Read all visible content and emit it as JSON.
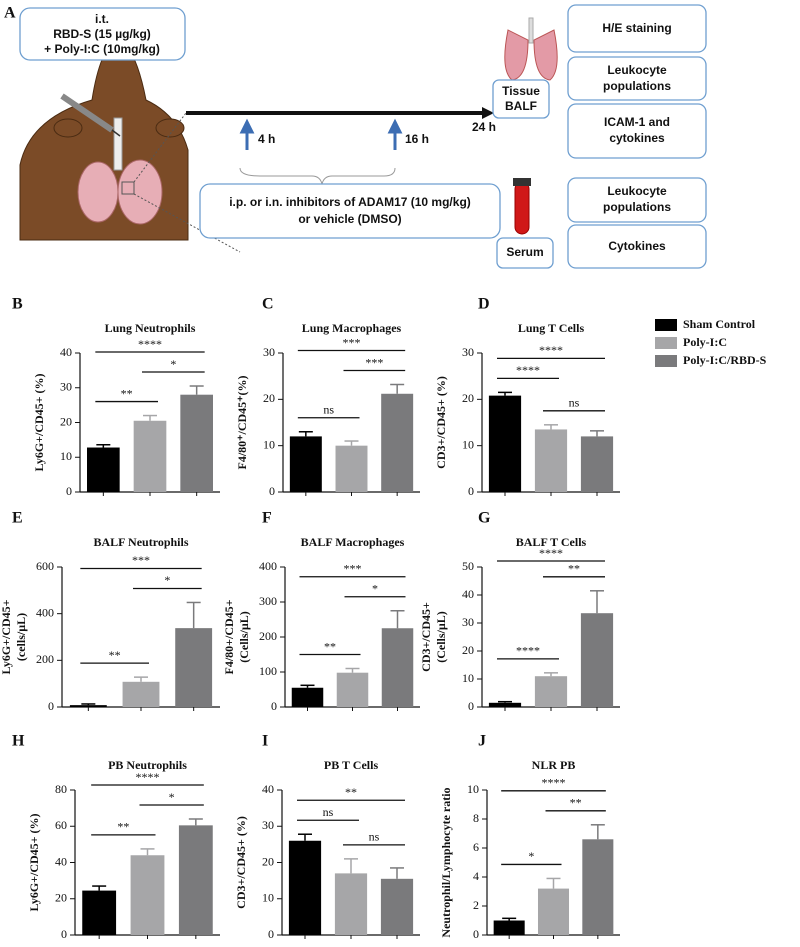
{
  "panel_a": {
    "label": "A",
    "treatment": [
      "i.t.",
      "RBD-S (15 µg/kg)",
      "+ Poly-I:C (10mg/kg)"
    ],
    "timepoints": [
      "4 h",
      "16 h",
      "24 h"
    ],
    "inhibitor": [
      "i.p. or i.n. inhibitors of ADAM17 (10 mg/kg)",
      "or vehicle (DMSO)"
    ],
    "tissue": [
      "Tissue",
      "BALF"
    ],
    "serum": "Serum",
    "tissue_readouts": [
      [
        "H/E staining"
      ],
      [
        "Leukocyte",
        "populations"
      ],
      [
        "ICAM-1 and",
        "cytokines"
      ]
    ],
    "serum_readouts": [
      [
        "Leukocyte",
        "populations"
      ],
      [
        "Cytokines"
      ]
    ]
  },
  "legend": [
    {
      "name": "Sham Control",
      "color": "#000000"
    },
    {
      "name": "Poly-I:C",
      "color": "#a6a6a8"
    },
    {
      "name": "Poly-I:C/RBD-S",
      "color": "#7a7a7c"
    }
  ],
  "chart_data": [
    {
      "type": "bar",
      "panel": "B",
      "title": "Lung Neutrophils",
      "y_label": [
        "Ly6G+/CD45+ (%)"
      ],
      "values": [
        12.8,
        20.5,
        28
      ],
      "errors": [
        0.8,
        1.5,
        2.5
      ],
      "ylim": [
        0,
        40
      ],
      "yticks": [
        0,
        10,
        20,
        30,
        40
      ],
      "significance": [
        "**",
        "*",
        "****"
      ]
    },
    {
      "type": "bar",
      "panel": "C",
      "title": "Lung Macrophages",
      "y_label": [
        "F4/80⁺/CD45⁺(%)"
      ],
      "values": [
        12,
        10,
        21.2
      ],
      "errors": [
        1,
        1,
        2
      ],
      "ylim": [
        0,
        30
      ],
      "yticks": [
        0,
        10,
        20,
        30
      ],
      "significance": [
        "ns",
        "***",
        "***"
      ]
    },
    {
      "type": "bar",
      "panel": "D",
      "title": "Lung T Cells",
      "y_label": [
        "CD3+/CD45+ (%)"
      ],
      "values": [
        20.8,
        13.5,
        12
      ],
      "errors": [
        0.7,
        1,
        1.2
      ],
      "ylim": [
        0,
        30
      ],
      "yticks": [
        0,
        10,
        20,
        30
      ],
      "significance": [
        "****",
        "ns",
        "****"
      ]
    },
    {
      "type": "bar",
      "panel": "E",
      "title": "BALF Neutrophils",
      "y_label": [
        "Ly6G+/CD45+",
        "(cells/µL)"
      ],
      "values": [
        8,
        108,
        338
      ],
      "errors": [
        5,
        20,
        110
      ],
      "ylim": [
        0,
        600
      ],
      "yticks": [
        0,
        200,
        400,
        600
      ],
      "significance": [
        "**",
        "*",
        "***"
      ]
    },
    {
      "type": "bar",
      "panel": "F",
      "title": "BALF Macrophages",
      "y_label": [
        "F4/80+/CD45+",
        "(Cells/µL)"
      ],
      "values": [
        55,
        98,
        225
      ],
      "errors": [
        7,
        12,
        50
      ],
      "ylim": [
        0,
        400
      ],
      "yticks": [
        0,
        100,
        200,
        300,
        400
      ],
      "significance": [
        "**",
        "*",
        "***"
      ]
    },
    {
      "type": "bar",
      "panel": "G",
      "title": "BALF T Cells",
      "y_label": [
        "CD3+/CD45+",
        "(Cells/µL)"
      ],
      "values": [
        1.5,
        11,
        33.5
      ],
      "errors": [
        0.4,
        1.2,
        8
      ],
      "ylim": [
        0,
        50
      ],
      "yticks": [
        0,
        10,
        20,
        30,
        40,
        50
      ],
      "significance": [
        "****",
        "**",
        "****"
      ]
    },
    {
      "type": "bar",
      "panel": "H",
      "title": "PB Neutrophils",
      "y_label": [
        "Ly6G+/CD45+ (%)"
      ],
      "values": [
        24.5,
        44,
        60.5
      ],
      "errors": [
        2.5,
        3.5,
        3.5
      ],
      "ylim": [
        0,
        80
      ],
      "yticks": [
        0,
        20,
        40,
        60,
        80
      ],
      "significance": [
        "**",
        "*",
        "****"
      ]
    },
    {
      "type": "bar",
      "panel": "I",
      "title": "PB T Cells",
      "y_label": [
        "CD3+/CD45+ (%)"
      ],
      "values": [
        26,
        17,
        15.5
      ],
      "errors": [
        1.8,
        4,
        3
      ],
      "ylim": [
        0,
        40
      ],
      "yticks": [
        0,
        10,
        20,
        30,
        40
      ],
      "significance": [
        "ns",
        "ns",
        "**"
      ]
    },
    {
      "type": "bar",
      "panel": "J",
      "title": "NLR PB",
      "y_label": [
        "Neutrophil/Lymphocyte ratio"
      ],
      "values": [
        1,
        3.2,
        6.6
      ],
      "errors": [
        0.15,
        0.7,
        1
      ],
      "ylim": [
        0,
        10
      ],
      "yticks": [
        0,
        2,
        4,
        6,
        8,
        10
      ],
      "significance": [
        "*",
        "**",
        "****"
      ]
    }
  ]
}
